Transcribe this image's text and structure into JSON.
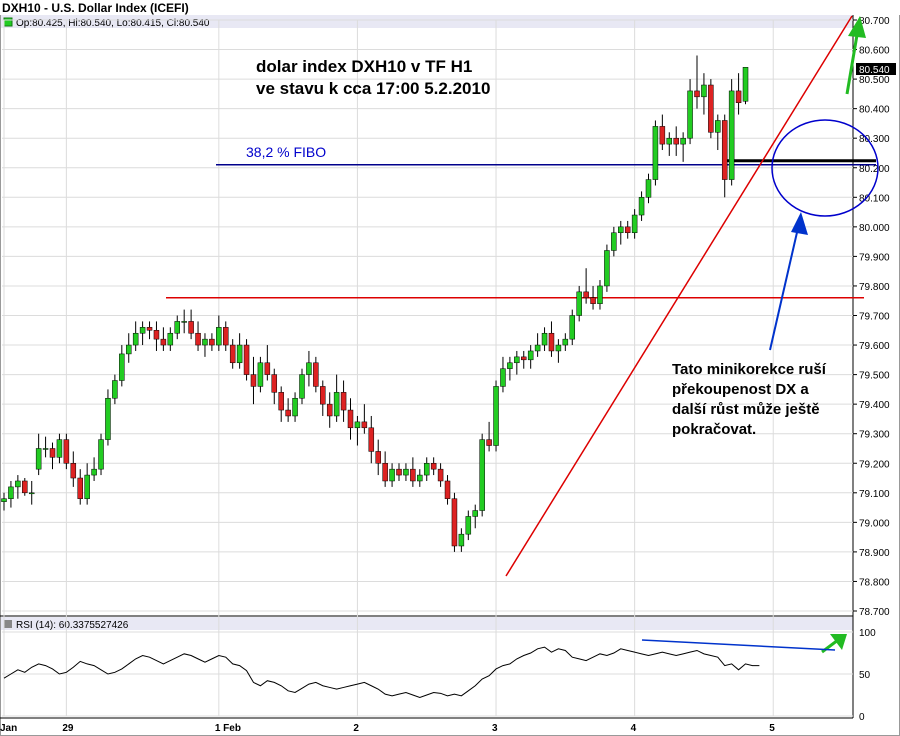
{
  "header": {
    "title": "DXH10 - U.S. Dollar Index (ICEFI)",
    "ohlc": "Op:80.425, Hi:80.540, Lo:80.415, Cl:80.540",
    "last_price": "80.540"
  },
  "annotations": {
    "main_title_line1": "dolar index DXH10 v TF H1",
    "main_title_line2": "ve stavu k cca 17:00 5.2.2010",
    "fibo_label": "38,2 % FIBO",
    "comment_lines": [
      "Tato minikorekce ruší",
      "překoupenost DX a",
      "další růst může ještě",
      "pokračovat."
    ]
  },
  "colors": {
    "up": "#22cc22",
    "down": "#dd2222",
    "fibo": "#00008b",
    "support": "#dd0000",
    "trendline": "#dd0000",
    "circle": "#0000cc",
    "arrow_blue": "#0033cc",
    "arrow_green": "#22bb22",
    "header_bg": "#e8e8f4"
  },
  "chart_data": [
    {
      "type": "candlestick",
      "title": "DXH10 - U.S. Dollar Index (ICEFI)",
      "ylim": [
        78.7,
        80.7
      ],
      "yticks": [
        "80.700",
        "80.600",
        "80.500",
        "80.400",
        "80.300",
        "80.200",
        "80.100",
        "80.000",
        "79.900",
        "79.800",
        "79.700",
        "79.600",
        "79.500",
        "79.400",
        "79.300",
        "79.200",
        "79.100",
        "79.000",
        "78.900",
        "78.800",
        "78.700"
      ],
      "xticks": [
        {
          "label": "Jan",
          "t": 0
        },
        {
          "label": "29",
          "t": 9
        },
        {
          "label": "1 Feb",
          "t": 31
        },
        {
          "label": "2",
          "t": 51
        },
        {
          "label": "3",
          "t": 71
        },
        {
          "label": "4",
          "t": 91
        },
        {
          "label": "5",
          "t": 111
        }
      ],
      "fibo_level": 80.21,
      "support_level": 79.76,
      "ohlc": [
        [
          79.07,
          79.1,
          79.04,
          79.08
        ],
        [
          79.08,
          79.14,
          79.05,
          79.12
        ],
        [
          79.12,
          79.16,
          79.08,
          79.14
        ],
        [
          79.14,
          79.15,
          79.09,
          79.1
        ],
        [
          79.1,
          79.14,
          79.06,
          79.1
        ],
        [
          79.18,
          79.3,
          79.16,
          79.25
        ],
        [
          79.25,
          79.29,
          79.22,
          79.25
        ],
        [
          79.25,
          79.27,
          79.18,
          79.22
        ],
        [
          79.22,
          79.3,
          79.2,
          79.28
        ],
        [
          79.28,
          79.3,
          79.18,
          79.2
        ],
        [
          79.2,
          79.24,
          79.12,
          79.15
        ],
        [
          79.15,
          79.18,
          79.06,
          79.08
        ],
        [
          79.08,
          79.2,
          79.06,
          79.16
        ],
        [
          79.16,
          79.22,
          79.14,
          79.18
        ],
        [
          79.18,
          79.3,
          79.16,
          79.28
        ],
        [
          79.28,
          79.45,
          79.26,
          79.42
        ],
        [
          79.42,
          79.5,
          79.4,
          79.48
        ],
        [
          79.48,
          79.6,
          79.46,
          79.57
        ],
        [
          79.57,
          79.64,
          79.54,
          79.6
        ],
        [
          79.6,
          79.68,
          79.58,
          79.64
        ],
        [
          79.64,
          79.68,
          79.6,
          79.66
        ],
        [
          79.66,
          79.68,
          79.62,
          79.65
        ],
        [
          79.65,
          79.68,
          79.58,
          79.62
        ],
        [
          79.62,
          79.66,
          79.58,
          79.6
        ],
        [
          79.6,
          79.66,
          79.58,
          79.64
        ],
        [
          79.64,
          79.7,
          79.62,
          79.68
        ],
        [
          79.68,
          79.72,
          79.64,
          79.68
        ],
        [
          79.68,
          79.72,
          79.62,
          79.64
        ],
        [
          79.64,
          79.68,
          79.58,
          79.6
        ],
        [
          79.6,
          79.64,
          79.56,
          79.62
        ],
        [
          79.62,
          79.64,
          79.58,
          79.6
        ],
        [
          79.6,
          79.7,
          79.58,
          79.66
        ],
        [
          79.66,
          79.68,
          79.58,
          79.6
        ],
        [
          79.6,
          79.62,
          79.52,
          79.54
        ],
        [
          79.54,
          79.64,
          79.52,
          79.6
        ],
        [
          79.6,
          79.62,
          79.48,
          79.5
        ],
        [
          79.5,
          79.56,
          79.4,
          79.46
        ],
        [
          79.46,
          79.56,
          79.44,
          79.54
        ],
        [
          79.54,
          79.6,
          79.48,
          79.5
        ],
        [
          79.5,
          79.52,
          79.4,
          79.44
        ],
        [
          79.44,
          79.46,
          79.34,
          79.38
        ],
        [
          79.38,
          79.42,
          79.34,
          79.36
        ],
        [
          79.36,
          79.44,
          79.34,
          79.42
        ],
        [
          79.42,
          79.52,
          79.4,
          79.5
        ],
        [
          79.5,
          79.58,
          79.46,
          79.54
        ],
        [
          79.54,
          79.56,
          79.44,
          79.46
        ],
        [
          79.46,
          79.48,
          79.36,
          79.4
        ],
        [
          79.4,
          79.44,
          79.32,
          79.36
        ],
        [
          79.36,
          79.5,
          79.34,
          79.44
        ],
        [
          79.44,
          79.48,
          79.34,
          79.38
        ],
        [
          79.38,
          79.42,
          79.28,
          79.32
        ],
        [
          79.32,
          79.36,
          79.26,
          79.34
        ],
        [
          79.34,
          79.4,
          79.3,
          79.32
        ],
        [
          79.32,
          79.36,
          79.2,
          79.24
        ],
        [
          79.24,
          79.28,
          79.16,
          79.2
        ],
        [
          79.2,
          79.24,
          79.12,
          79.14
        ],
        [
          79.14,
          79.2,
          79.12,
          79.18
        ],
        [
          79.18,
          79.2,
          79.14,
          79.16
        ],
        [
          79.16,
          79.2,
          79.14,
          79.18
        ],
        [
          79.18,
          79.22,
          79.12,
          79.14
        ],
        [
          79.14,
          79.18,
          79.12,
          79.16
        ],
        [
          79.16,
          79.22,
          79.14,
          79.2
        ],
        [
          79.2,
          79.22,
          79.16,
          79.18
        ],
        [
          79.18,
          79.2,
          79.12,
          79.14
        ],
        [
          79.14,
          79.16,
          79.06,
          79.08
        ],
        [
          79.08,
          79.1,
          78.9,
          78.92
        ],
        [
          78.92,
          78.98,
          78.9,
          78.96
        ],
        [
          78.96,
          79.04,
          78.94,
          79.02
        ],
        [
          79.02,
          79.06,
          78.98,
          79.04
        ],
        [
          79.04,
          79.3,
          79.02,
          79.28
        ],
        [
          79.28,
          79.34,
          79.24,
          79.26
        ],
        [
          79.26,
          79.48,
          79.24,
          79.46
        ],
        [
          79.46,
          79.56,
          79.44,
          79.52
        ],
        [
          79.52,
          79.56,
          79.48,
          79.54
        ],
        [
          79.54,
          79.58,
          79.5,
          79.56
        ],
        [
          79.56,
          79.58,
          79.52,
          79.55
        ],
        [
          79.55,
          79.6,
          79.52,
          79.58
        ],
        [
          79.58,
          79.64,
          79.56,
          79.6
        ],
        [
          79.6,
          79.66,
          79.58,
          79.64
        ],
        [
          79.64,
          79.68,
          79.56,
          79.58
        ],
        [
          79.58,
          79.62,
          79.54,
          79.6
        ],
        [
          79.6,
          79.64,
          79.58,
          79.62
        ],
        [
          79.62,
          79.72,
          79.6,
          79.7
        ],
        [
          79.7,
          79.8,
          79.68,
          79.78
        ],
        [
          79.78,
          79.86,
          79.74,
          79.76
        ],
        [
          79.76,
          79.8,
          79.72,
          79.74
        ],
        [
          79.74,
          79.82,
          79.72,
          79.8
        ],
        [
          79.8,
          79.94,
          79.78,
          79.92
        ],
        [
          79.92,
          80.0,
          79.9,
          79.98
        ],
        [
          79.98,
          80.02,
          79.94,
          80.0
        ],
        [
          80.0,
          80.02,
          79.96,
          79.98
        ],
        [
          79.98,
          80.06,
          79.96,
          80.04
        ],
        [
          80.04,
          80.12,
          80.02,
          80.1
        ],
        [
          80.1,
          80.18,
          80.08,
          80.16
        ],
        [
          80.16,
          80.36,
          80.14,
          80.34
        ],
        [
          80.34,
          80.38,
          80.26,
          80.28
        ],
        [
          80.28,
          80.32,
          80.24,
          80.3
        ],
        [
          80.3,
          80.34,
          80.24,
          80.28
        ],
        [
          80.28,
          80.32,
          80.22,
          80.3
        ],
        [
          80.3,
          80.5,
          80.28,
          80.46
        ],
        [
          80.46,
          80.58,
          80.4,
          80.44
        ],
        [
          80.44,
          80.52,
          80.38,
          80.48
        ],
        [
          80.48,
          80.5,
          80.3,
          80.32
        ],
        [
          80.32,
          80.38,
          80.26,
          80.36
        ],
        [
          80.36,
          80.38,
          80.1,
          80.16
        ],
        [
          80.16,
          80.5,
          80.14,
          80.46
        ],
        [
          80.46,
          80.52,
          80.38,
          80.42
        ],
        [
          80.425,
          80.54,
          80.415,
          80.54
        ]
      ]
    },
    {
      "type": "line",
      "title": "RSI (14): 60.3375527426",
      "ylim": [
        0,
        100
      ],
      "yticks": [
        0,
        50,
        100
      ],
      "values": [
        45,
        50,
        55,
        52,
        58,
        62,
        60,
        56,
        50,
        52,
        58,
        65,
        62,
        60,
        55,
        50,
        52,
        56,
        62,
        68,
        72,
        70,
        66,
        62,
        66,
        70,
        74,
        72,
        68,
        64,
        68,
        72,
        70,
        62,
        60,
        54,
        40,
        36,
        42,
        40,
        36,
        30,
        28,
        33,
        38,
        40,
        36,
        34,
        32,
        34,
        36,
        38,
        40,
        36,
        32,
        26,
        24,
        26,
        28,
        25,
        22,
        25,
        28,
        27,
        24,
        26,
        24,
        30,
        36,
        44,
        48,
        56,
        60,
        62,
        68,
        72,
        75,
        80,
        82,
        76,
        80,
        78,
        70,
        68,
        66,
        70,
        74,
        72,
        75,
        80,
        78,
        76,
        74,
        72,
        74,
        76,
        74,
        72,
        74,
        76,
        78,
        74,
        72,
        70,
        60,
        62,
        55,
        62,
        60,
        60
      ]
    }
  ]
}
